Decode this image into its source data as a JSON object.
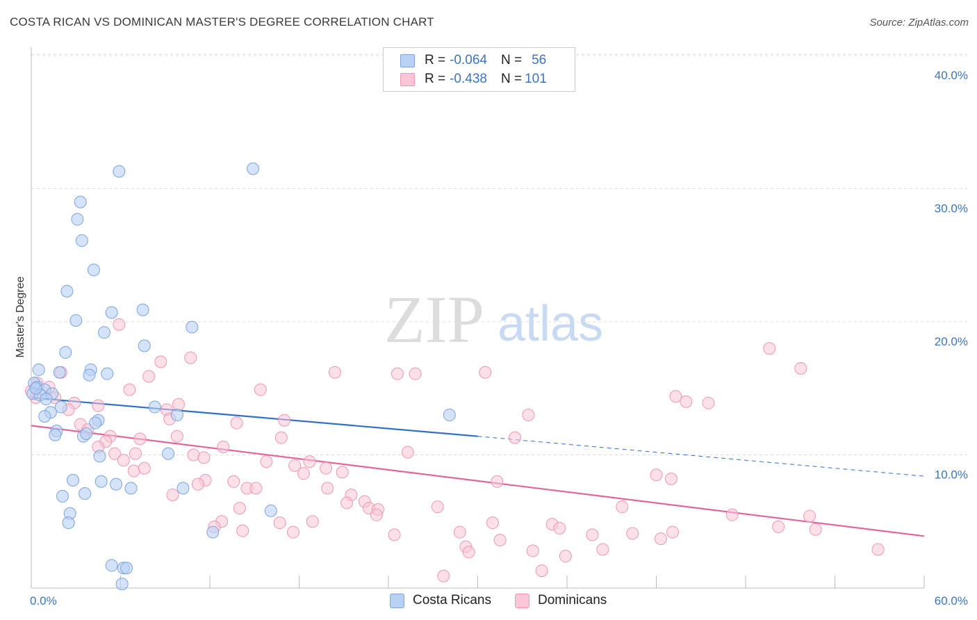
{
  "title": "COSTA RICAN VS DOMINICAN MASTER'S DEGREE CORRELATION CHART",
  "source": "Source: ZipAtlas.com",
  "watermark": {
    "zip": "ZIP",
    "atlas": "atlas"
  },
  "legend": {
    "rows": [
      {
        "r_label": "R = ",
        "r_value": "-0.064",
        "n_label": "N = ",
        "n_value": "56"
      },
      {
        "r_label": "R = ",
        "r_value": "-0.438",
        "n_label": "N = ",
        "n_value": "101"
      }
    ]
  },
  "bottom_legend": {
    "series1": "Costa Ricans",
    "series2": "Dominicans"
  },
  "colors": {
    "blue_fill": "#b9d1f3",
    "blue_stroke": "#7aa4dc",
    "blue_line": "#2f6fc9",
    "pink_fill": "#f8c6d6",
    "pink_stroke": "#ee97b4",
    "pink_line": "#e2649a",
    "axis_text": "#3b74c4",
    "grid": "#dddddd"
  },
  "chart_data": {
    "type": "scatter",
    "title": "COSTA RICAN VS DOMINICAN MASTER'S DEGREE CORRELATION CHART",
    "xlabel": "",
    "ylabel": "Master's Degree",
    "xlim": [
      0,
      60
    ],
    "ylim": [
      0,
      42
    ],
    "x_tick_labels": [
      "0.0%",
      "60.0%"
    ],
    "y_ticks": [
      10,
      20,
      30,
      40
    ],
    "y_tick_labels": [
      "10.0%",
      "20.0%",
      "30.0%",
      "40.0%"
    ],
    "series": [
      {
        "name": "Costa Ricans",
        "r": -0.064,
        "n": 56,
        "trend": {
          "x0": 0,
          "y0": 14.3,
          "x1": 30,
          "y1": 11.4,
          "dashed_to_x": 60,
          "dashed_to_y": 8.4
        },
        "points": [
          [
            5.9,
            31.3
          ],
          [
            14.9,
            31.5
          ],
          [
            3.3,
            29.0
          ],
          [
            3.1,
            27.7
          ],
          [
            3.4,
            26.1
          ],
          [
            4.2,
            23.9
          ],
          [
            2.4,
            22.3
          ],
          [
            7.5,
            20.9
          ],
          [
            5.4,
            20.7
          ],
          [
            3.0,
            20.1
          ],
          [
            10.8,
            19.6
          ],
          [
            4.9,
            19.2
          ],
          [
            7.6,
            18.2
          ],
          [
            2.3,
            17.7
          ],
          [
            0.5,
            16.4
          ],
          [
            4.0,
            16.4
          ],
          [
            1.9,
            16.2
          ],
          [
            3.9,
            16.0
          ],
          [
            5.1,
            16.1
          ],
          [
            0.2,
            15.4
          ],
          [
            0.4,
            15.1
          ],
          [
            0.9,
            14.9
          ],
          [
            0.1,
            14.6
          ],
          [
            1.4,
            14.6
          ],
          [
            0.6,
            14.5
          ],
          [
            1.0,
            14.2
          ],
          [
            2.0,
            13.6
          ],
          [
            8.3,
            13.6
          ],
          [
            1.3,
            13.2
          ],
          [
            0.9,
            12.9
          ],
          [
            9.8,
            13.0
          ],
          [
            28.1,
            13.0
          ],
          [
            4.5,
            12.6
          ],
          [
            4.3,
            12.4
          ],
          [
            1.7,
            11.8
          ],
          [
            1.6,
            11.5
          ],
          [
            3.5,
            11.4
          ],
          [
            3.7,
            11.6
          ],
          [
            9.2,
            10.1
          ],
          [
            4.6,
            9.9
          ],
          [
            2.8,
            8.1
          ],
          [
            4.7,
            8.0
          ],
          [
            5.7,
            7.8
          ],
          [
            6.7,
            7.5
          ],
          [
            10.2,
            7.5
          ],
          [
            3.6,
            7.1
          ],
          [
            2.1,
            6.9
          ],
          [
            16.1,
            5.8
          ],
          [
            2.6,
            5.6
          ],
          [
            2.5,
            4.9
          ],
          [
            12.2,
            4.2
          ],
          [
            5.4,
            1.7
          ],
          [
            6.2,
            1.5
          ],
          [
            6.4,
            1.5
          ],
          [
            6.1,
            0.3
          ],
          [
            0.3,
            15.0
          ]
        ]
      },
      {
        "name": "Dominicans",
        "r": -0.438,
        "n": 101,
        "trend": {
          "x0": 0,
          "y0": 12.2,
          "x1": 60,
          "y1": 3.9
        },
        "points": [
          [
            5.9,
            19.8
          ],
          [
            49.6,
            18.0
          ],
          [
            51.7,
            16.5
          ],
          [
            8.7,
            17.0
          ],
          [
            10.7,
            17.3
          ],
          [
            20.4,
            16.2
          ],
          [
            24.6,
            16.1
          ],
          [
            25.8,
            16.1
          ],
          [
            30.5,
            16.2
          ],
          [
            7.9,
            15.9
          ],
          [
            0.4,
            15.4
          ],
          [
            1.2,
            15.1
          ],
          [
            2.0,
            16.2
          ],
          [
            6.6,
            14.9
          ],
          [
            15.4,
            14.9
          ],
          [
            43.3,
            14.4
          ],
          [
            44.0,
            14.0
          ],
          [
            0.3,
            14.3
          ],
          [
            1.6,
            14.3
          ],
          [
            2.9,
            13.9
          ],
          [
            4.5,
            13.7
          ],
          [
            9.9,
            13.8
          ],
          [
            9.1,
            13.4
          ],
          [
            2.5,
            13.4
          ],
          [
            33.4,
            13.0
          ],
          [
            17.0,
            12.6
          ],
          [
            9.3,
            12.7
          ],
          [
            13.8,
            12.4
          ],
          [
            3.3,
            12.3
          ],
          [
            3.8,
            11.9
          ],
          [
            5.3,
            11.4
          ],
          [
            9.8,
            11.4
          ],
          [
            7.3,
            11.2
          ],
          [
            16.8,
            11.3
          ],
          [
            32.5,
            11.3
          ],
          [
            5.0,
            11.0
          ],
          [
            4.5,
            10.6
          ],
          [
            12.9,
            10.6
          ],
          [
            25.3,
            10.2
          ],
          [
            5.6,
            10.1
          ],
          [
            7.0,
            10.1
          ],
          [
            10.9,
            10.0
          ],
          [
            11.6,
            9.8
          ],
          [
            6.2,
            9.6
          ],
          [
            15.8,
            9.5
          ],
          [
            17.7,
            9.2
          ],
          [
            18.7,
            9.5
          ],
          [
            19.8,
            9.0
          ],
          [
            20.9,
            8.7
          ],
          [
            18.3,
            8.6
          ],
          [
            6.9,
            8.8
          ],
          [
            7.6,
            9.0
          ],
          [
            11.7,
            8.1
          ],
          [
            13.6,
            8.0
          ],
          [
            11.2,
            7.8
          ],
          [
            14.5,
            7.5
          ],
          [
            15.1,
            7.5
          ],
          [
            19.9,
            7.5
          ],
          [
            31.3,
            8.0
          ],
          [
            42.0,
            8.5
          ],
          [
            43.0,
            8.2
          ],
          [
            9.5,
            7.0
          ],
          [
            21.5,
            7.0
          ],
          [
            22.4,
            6.5
          ],
          [
            21.2,
            6.4
          ],
          [
            14.0,
            6.0
          ],
          [
            22.7,
            6.0
          ],
          [
            23.3,
            5.9
          ],
          [
            27.3,
            6.1
          ],
          [
            39.7,
            6.1
          ],
          [
            47.1,
            5.5
          ],
          [
            52.3,
            5.4
          ],
          [
            12.8,
            5.0
          ],
          [
            16.7,
            4.9
          ],
          [
            18.9,
            5.0
          ],
          [
            31.0,
            4.9
          ],
          [
            35.0,
            4.8
          ],
          [
            35.5,
            4.5
          ],
          [
            12.3,
            4.6
          ],
          [
            14.2,
            4.3
          ],
          [
            17.6,
            4.2
          ],
          [
            24.4,
            4.0
          ],
          [
            28.8,
            4.2
          ],
          [
            37.7,
            4.0
          ],
          [
            40.4,
            4.1
          ],
          [
            43.1,
            4.2
          ],
          [
            42.3,
            3.7
          ],
          [
            50.2,
            4.6
          ],
          [
            52.7,
            4.4
          ],
          [
            31.5,
            3.6
          ],
          [
            29.2,
            3.1
          ],
          [
            29.4,
            2.7
          ],
          [
            33.7,
            2.8
          ],
          [
            35.9,
            2.4
          ],
          [
            38.4,
            2.9
          ],
          [
            56.9,
            2.9
          ],
          [
            34.3,
            1.3
          ],
          [
            27.7,
            0.9
          ],
          [
            0.0,
            14.8
          ],
          [
            45.5,
            13.9
          ],
          [
            23.2,
            5.5
          ]
        ]
      }
    ]
  }
}
